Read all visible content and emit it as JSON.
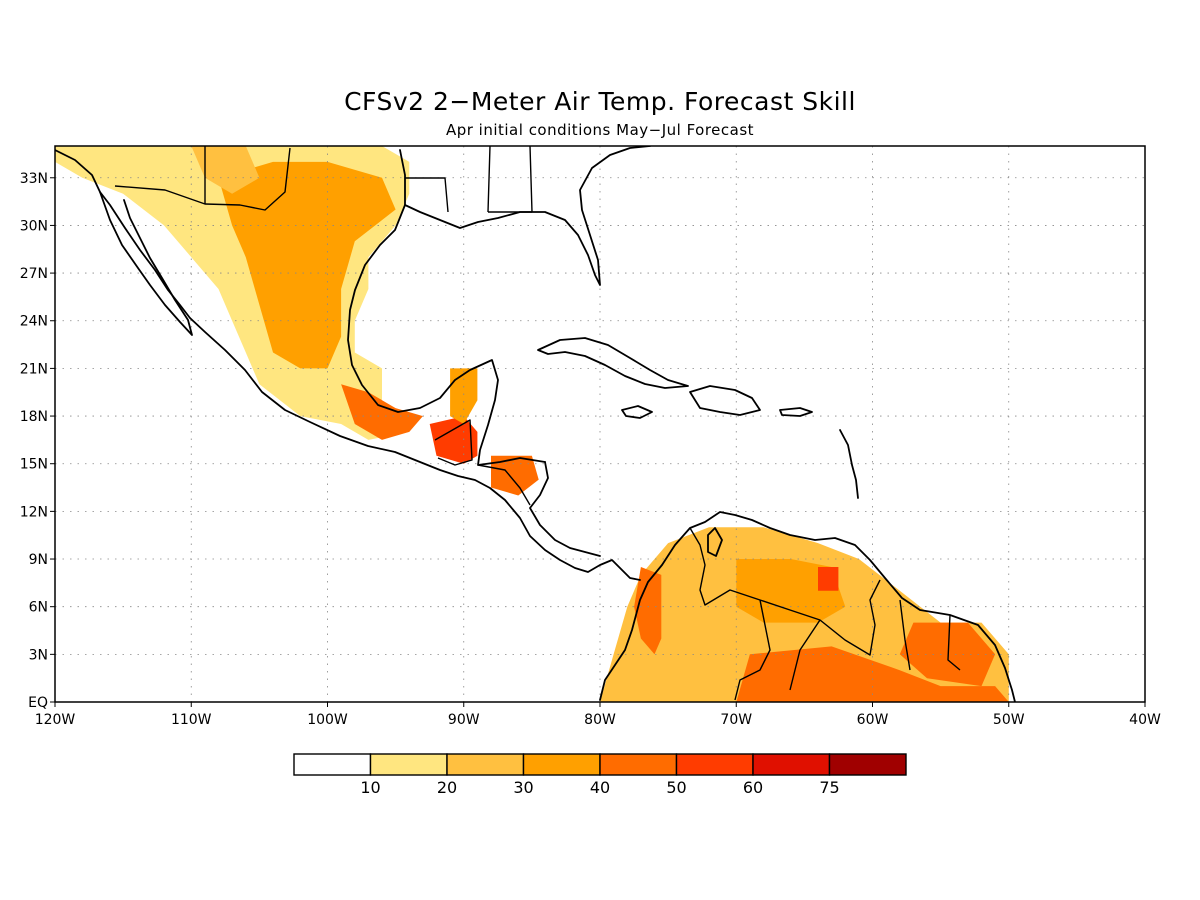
{
  "title": "CFSv2 2−Meter Air Temp. Forecast Skill",
  "subtitle": "Apr initial conditions  May−Jul Forecast",
  "map": {
    "lon_range": [
      -120,
      -40
    ],
    "lat_range": [
      0,
      35
    ],
    "x_ticks": [
      {
        "value": -120,
        "label": "120W"
      },
      {
        "value": -110,
        "label": "110W"
      },
      {
        "value": -100,
        "label": "100W"
      },
      {
        "value": -90,
        "label": "90W"
      },
      {
        "value": -80,
        "label": "80W"
      },
      {
        "value": -70,
        "label": "70W"
      },
      {
        "value": -60,
        "label": "60W"
      },
      {
        "value": -50,
        "label": "50W"
      },
      {
        "value": -40,
        "label": "40W"
      }
    ],
    "y_ticks": [
      {
        "value": 0,
        "label": "EQ"
      },
      {
        "value": 3,
        "label": "3N"
      },
      {
        "value": 6,
        "label": "6N"
      },
      {
        "value": 9,
        "label": "9N"
      },
      {
        "value": 12,
        "label": "12N"
      },
      {
        "value": 15,
        "label": "15N"
      },
      {
        "value": 18,
        "label": "18N"
      },
      {
        "value": 21,
        "label": "21N"
      },
      {
        "value": 24,
        "label": "24N"
      },
      {
        "value": 27,
        "label": "27N"
      },
      {
        "value": 30,
        "label": "30N"
      },
      {
        "value": 33,
        "label": "33N"
      }
    ],
    "grid": true
  },
  "colorbar": {
    "colors": [
      "#ffffff",
      "#ffe680",
      "#ffc040",
      "#ffa000",
      "#ff6c00",
      "#ff3c00",
      "#e01000",
      "#a00000"
    ],
    "labels": [
      "10",
      "20",
      "30",
      "40",
      "50",
      "60",
      "75"
    ]
  },
  "skill_regions": [
    {
      "name": "region-n-mexico",
      "level": 1,
      "points": [
        [
          -120,
          35
        ],
        [
          -112,
          35
        ],
        [
          -108,
          35
        ],
        [
          -104,
          35
        ],
        [
          -100,
          35
        ],
        [
          -96,
          35
        ],
        [
          -94,
          34
        ],
        [
          -94,
          32
        ],
        [
          -95,
          30
        ],
        [
          -97,
          28
        ],
        [
          -97,
          26
        ],
        [
          -98,
          24
        ],
        [
          -98,
          22
        ],
        [
          -96,
          21
        ],
        [
          -96,
          18
        ],
        [
          -94,
          17
        ],
        [
          -97,
          16.5
        ],
        [
          -99,
          17.5
        ],
        [
          -102,
          18
        ],
        [
          -105,
          20
        ],
        [
          -106,
          22
        ],
        [
          -107,
          24
        ],
        [
          -108,
          26
        ],
        [
          -110,
          28
        ],
        [
          -112,
          30
        ],
        [
          -115,
          32
        ],
        [
          -118,
          33
        ],
        [
          -120,
          34
        ]
      ]
    },
    {
      "name": "region-mexico-core",
      "level": 3,
      "points": [
        [
          -108,
          33
        ],
        [
          -104,
          34
        ],
        [
          -100,
          34
        ],
        [
          -96,
          33
        ],
        [
          -95,
          31
        ],
        [
          -98,
          29
        ],
        [
          -99,
          26
        ],
        [
          -99,
          23
        ],
        [
          -100,
          21
        ],
        [
          -102,
          21
        ],
        [
          -104,
          22
        ],
        [
          -105,
          25
        ],
        [
          -106,
          28
        ],
        [
          -107,
          30
        ]
      ]
    },
    {
      "name": "region-mexico-mid",
      "level": 2,
      "points": [
        [
          -110,
          35
        ],
        [
          -106,
          35
        ],
        [
          -105,
          33
        ],
        [
          -107,
          32
        ],
        [
          -109,
          33
        ]
      ]
    },
    {
      "name": "region-s-mexico",
      "level": 4,
      "points": [
        [
          -99,
          20
        ],
        [
          -97,
          19.5
        ],
        [
          -95,
          18.5
        ],
        [
          -93,
          18
        ],
        [
          -94,
          17
        ],
        [
          -96,
          16.5
        ],
        [
          -98,
          17.5
        ]
      ]
    },
    {
      "name": "region-guatemala",
      "level": 5,
      "points": [
        [
          -92.5,
          17.5
        ],
        [
          -90,
          18
        ],
        [
          -89,
          17
        ],
        [
          -89,
          15.5
        ],
        [
          -90,
          15
        ],
        [
          -92,
          15.5
        ]
      ]
    },
    {
      "name": "region-yucatan",
      "level": 3,
      "points": [
        [
          -91,
          21
        ],
        [
          -89,
          21
        ],
        [
          -89,
          19
        ],
        [
          -90,
          17.5
        ],
        [
          -91,
          18
        ]
      ]
    },
    {
      "name": "region-honduras",
      "level": 4,
      "points": [
        [
          -88,
          15.5
        ],
        [
          -85,
          15.5
        ],
        [
          -84.5,
          14
        ],
        [
          -86,
          13
        ],
        [
          -88,
          13.5
        ]
      ]
    },
    {
      "name": "region-n-south-america",
      "level": 2,
      "points": [
        [
          -77,
          8
        ],
        [
          -75,
          10
        ],
        [
          -72,
          11
        ],
        [
          -68,
          11
        ],
        [
          -64,
          10
        ],
        [
          -61,
          9
        ],
        [
          -58,
          7
        ],
        [
          -55,
          5
        ],
        [
          -52,
          5
        ],
        [
          -50,
          3
        ],
        [
          -50,
          0
        ],
        [
          -80,
          0
        ],
        [
          -79,
          3
        ],
        [
          -78,
          6
        ]
      ]
    },
    {
      "name": "region-venezuela",
      "level": 3,
      "points": [
        [
          -70,
          9
        ],
        [
          -66,
          9
        ],
        [
          -63,
          8.5
        ],
        [
          -62,
          6
        ],
        [
          -64,
          5
        ],
        [
          -68,
          5
        ],
        [
          -70,
          6
        ]
      ]
    },
    {
      "name": "region-guianas",
      "level": 4,
      "points": [
        [
          -57,
          5
        ],
        [
          -53,
          5
        ],
        [
          -51,
          3
        ],
        [
          -52,
          1
        ],
        [
          -56,
          1.5
        ],
        [
          -58,
          3
        ]
      ]
    },
    {
      "name": "region-amazon",
      "level": 4,
      "points": [
        [
          -69,
          3
        ],
        [
          -63,
          3.5
        ],
        [
          -58,
          2
        ],
        [
          -55,
          1
        ],
        [
          -51,
          1
        ],
        [
          -50,
          0
        ],
        [
          -70,
          0
        ]
      ]
    },
    {
      "name": "region-colombia-w",
      "level": 4,
      "points": [
        [
          -77,
          8.5
        ],
        [
          -75.5,
          8
        ],
        [
          -75.5,
          4
        ],
        [
          -76,
          3
        ],
        [
          -77,
          4
        ],
        [
          -77.5,
          6
        ]
      ]
    },
    {
      "name": "region-venezuela-core",
      "level": 5,
      "points": [
        [
          -64,
          8.5
        ],
        [
          -62.5,
          8.5
        ],
        [
          -62.5,
          7
        ],
        [
          -64,
          7
        ]
      ]
    }
  ]
}
